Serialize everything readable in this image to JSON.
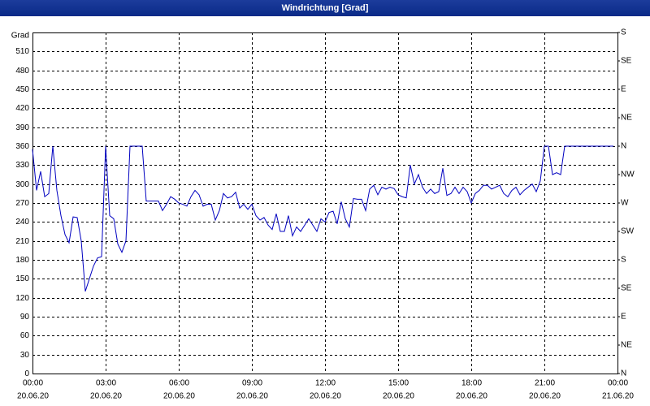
{
  "chart_data": {
    "type": "line",
    "title": "Windrichtung [Grad]",
    "y_label": "Grad",
    "x": [
      0,
      10,
      20,
      30,
      40,
      50,
      60,
      70,
      80,
      90,
      100,
      110,
      120,
      130,
      140,
      150,
      160,
      170,
      180,
      190,
      200,
      210,
      220,
      230,
      240,
      250,
      260,
      270,
      280,
      290,
      300,
      310,
      320,
      330,
      340,
      350,
      360,
      370,
      380,
      390,
      400,
      410,
      420,
      430,
      440,
      450,
      460,
      470,
      480,
      490,
      500,
      510,
      520,
      530,
      540,
      550,
      560,
      570,
      580,
      590,
      600,
      610,
      620,
      630,
      640,
      650,
      660,
      670,
      680,
      690,
      700,
      710,
      720,
      730,
      740,
      750,
      760,
      770,
      780,
      790,
      800,
      810,
      820,
      830,
      840,
      850,
      860,
      870,
      880,
      890,
      900,
      910,
      920,
      930,
      940,
      950,
      960,
      970,
      980,
      990,
      1000,
      1010,
      1020,
      1030,
      1040,
      1050,
      1060,
      1070,
      1080,
      1090,
      1100,
      1110,
      1120,
      1130,
      1140,
      1150,
      1160,
      1170,
      1180,
      1190,
      1200,
      1210,
      1220,
      1230,
      1240,
      1250,
      1260,
      1270,
      1280,
      1290,
      1300,
      1310,
      1320,
      1380,
      1430
    ],
    "series": [
      {
        "name": "Windrichtung",
        "color": "#0000c0",
        "values": [
          355,
          290,
          320,
          280,
          285,
          360,
          290,
          250,
          220,
          207,
          248,
          247,
          210,
          130,
          150,
          170,
          183,
          185,
          360,
          250,
          245,
          205,
          192,
          210,
          360,
          360,
          360,
          360,
          273,
          273,
          273,
          273,
          258,
          268,
          280,
          276,
          270,
          268,
          265,
          280,
          290,
          283,
          265,
          268,
          268,
          243,
          258,
          285,
          278,
          280,
          287,
          262,
          268,
          260,
          268,
          250,
          243,
          247,
          235,
          228,
          253,
          225,
          225,
          250,
          218,
          232,
          225,
          235,
          245,
          235,
          225,
          245,
          240,
          255,
          257,
          237,
          272,
          245,
          232,
          277,
          276,
          276,
          258,
          292,
          298,
          283,
          295,
          292,
          295,
          293,
          283,
          280,
          278,
          330,
          300,
          315,
          295,
          285,
          292,
          285,
          288,
          325,
          282,
          285,
          295,
          285,
          295,
          288,
          270,
          285,
          290,
          298,
          298,
          292,
          295,
          298,
          285,
          280,
          290,
          295,
          283,
          290,
          295,
          300,
          288,
          305,
          360,
          360,
          315,
          318,
          315,
          360,
          360,
          360,
          360
        ]
      }
    ],
    "xlim": [
      0,
      1440
    ],
    "xticks": [
      {
        "value": 0,
        "label": "00:00",
        "date": "20.06.20"
      },
      {
        "value": 180,
        "label": "03:00",
        "date": "20.06.20"
      },
      {
        "value": 360,
        "label": "06:00",
        "date": "20.06.20"
      },
      {
        "value": 540,
        "label": "09:00",
        "date": "20.06.20"
      },
      {
        "value": 720,
        "label": "12:00",
        "date": "20.06.20"
      },
      {
        "value": 900,
        "label": "15:00",
        "date": "20.06.20"
      },
      {
        "value": 1080,
        "label": "18:00",
        "date": "20.06.20"
      },
      {
        "value": 1260,
        "label": "21:00",
        "date": "20.06.20"
      },
      {
        "value": 1440,
        "label": "00:00",
        "date": "21.06.20"
      }
    ],
    "ylim": [
      0,
      540
    ],
    "yticks": [
      0,
      30,
      60,
      90,
      120,
      150,
      180,
      210,
      240,
      270,
      300,
      330,
      360,
      390,
      420,
      450,
      480,
      510
    ],
    "y2lim": [
      0,
      540
    ],
    "y2ticks": [
      {
        "value": 0,
        "label": "N"
      },
      {
        "value": 45,
        "label": "NE"
      },
      {
        "value": 90,
        "label": "E"
      },
      {
        "value": 135,
        "label": "SE"
      },
      {
        "value": 180,
        "label": "S"
      },
      {
        "value": 225,
        "label": "SW"
      },
      {
        "value": 270,
        "label": "W"
      },
      {
        "value": 315,
        "label": "NW"
      },
      {
        "value": 360,
        "label": "N"
      },
      {
        "value": 405,
        "label": "NE"
      },
      {
        "value": 450,
        "label": "E"
      },
      {
        "value": 495,
        "label": "SE"
      },
      {
        "value": 540,
        "label": "S"
      }
    ],
    "grid": true
  }
}
